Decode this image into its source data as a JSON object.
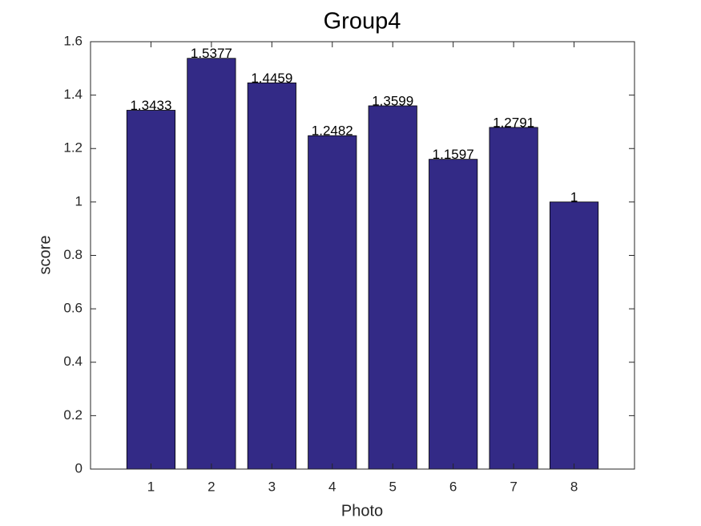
{
  "chart_data": {
    "type": "bar",
    "title": "Group4",
    "x_label": "Photo",
    "y_label": "score",
    "x": [
      1,
      2,
      3,
      4,
      5,
      6,
      7,
      8
    ],
    "values": [
      1.3433,
      1.5377,
      1.4459,
      1.2482,
      1.3599,
      1.1597,
      1.2791,
      1
    ],
    "color": "#332a86",
    "xlim": [
      0,
      9
    ],
    "xticks": [
      1,
      2,
      3,
      4,
      5,
      6,
      7,
      8
    ],
    "ylim": [
      0,
      1.6
    ],
    "yticks": [
      0,
      0.2,
      0.4,
      0.6,
      0.8,
      1,
      1.2,
      1.4,
      1.6
    ],
    "grid": false
  }
}
